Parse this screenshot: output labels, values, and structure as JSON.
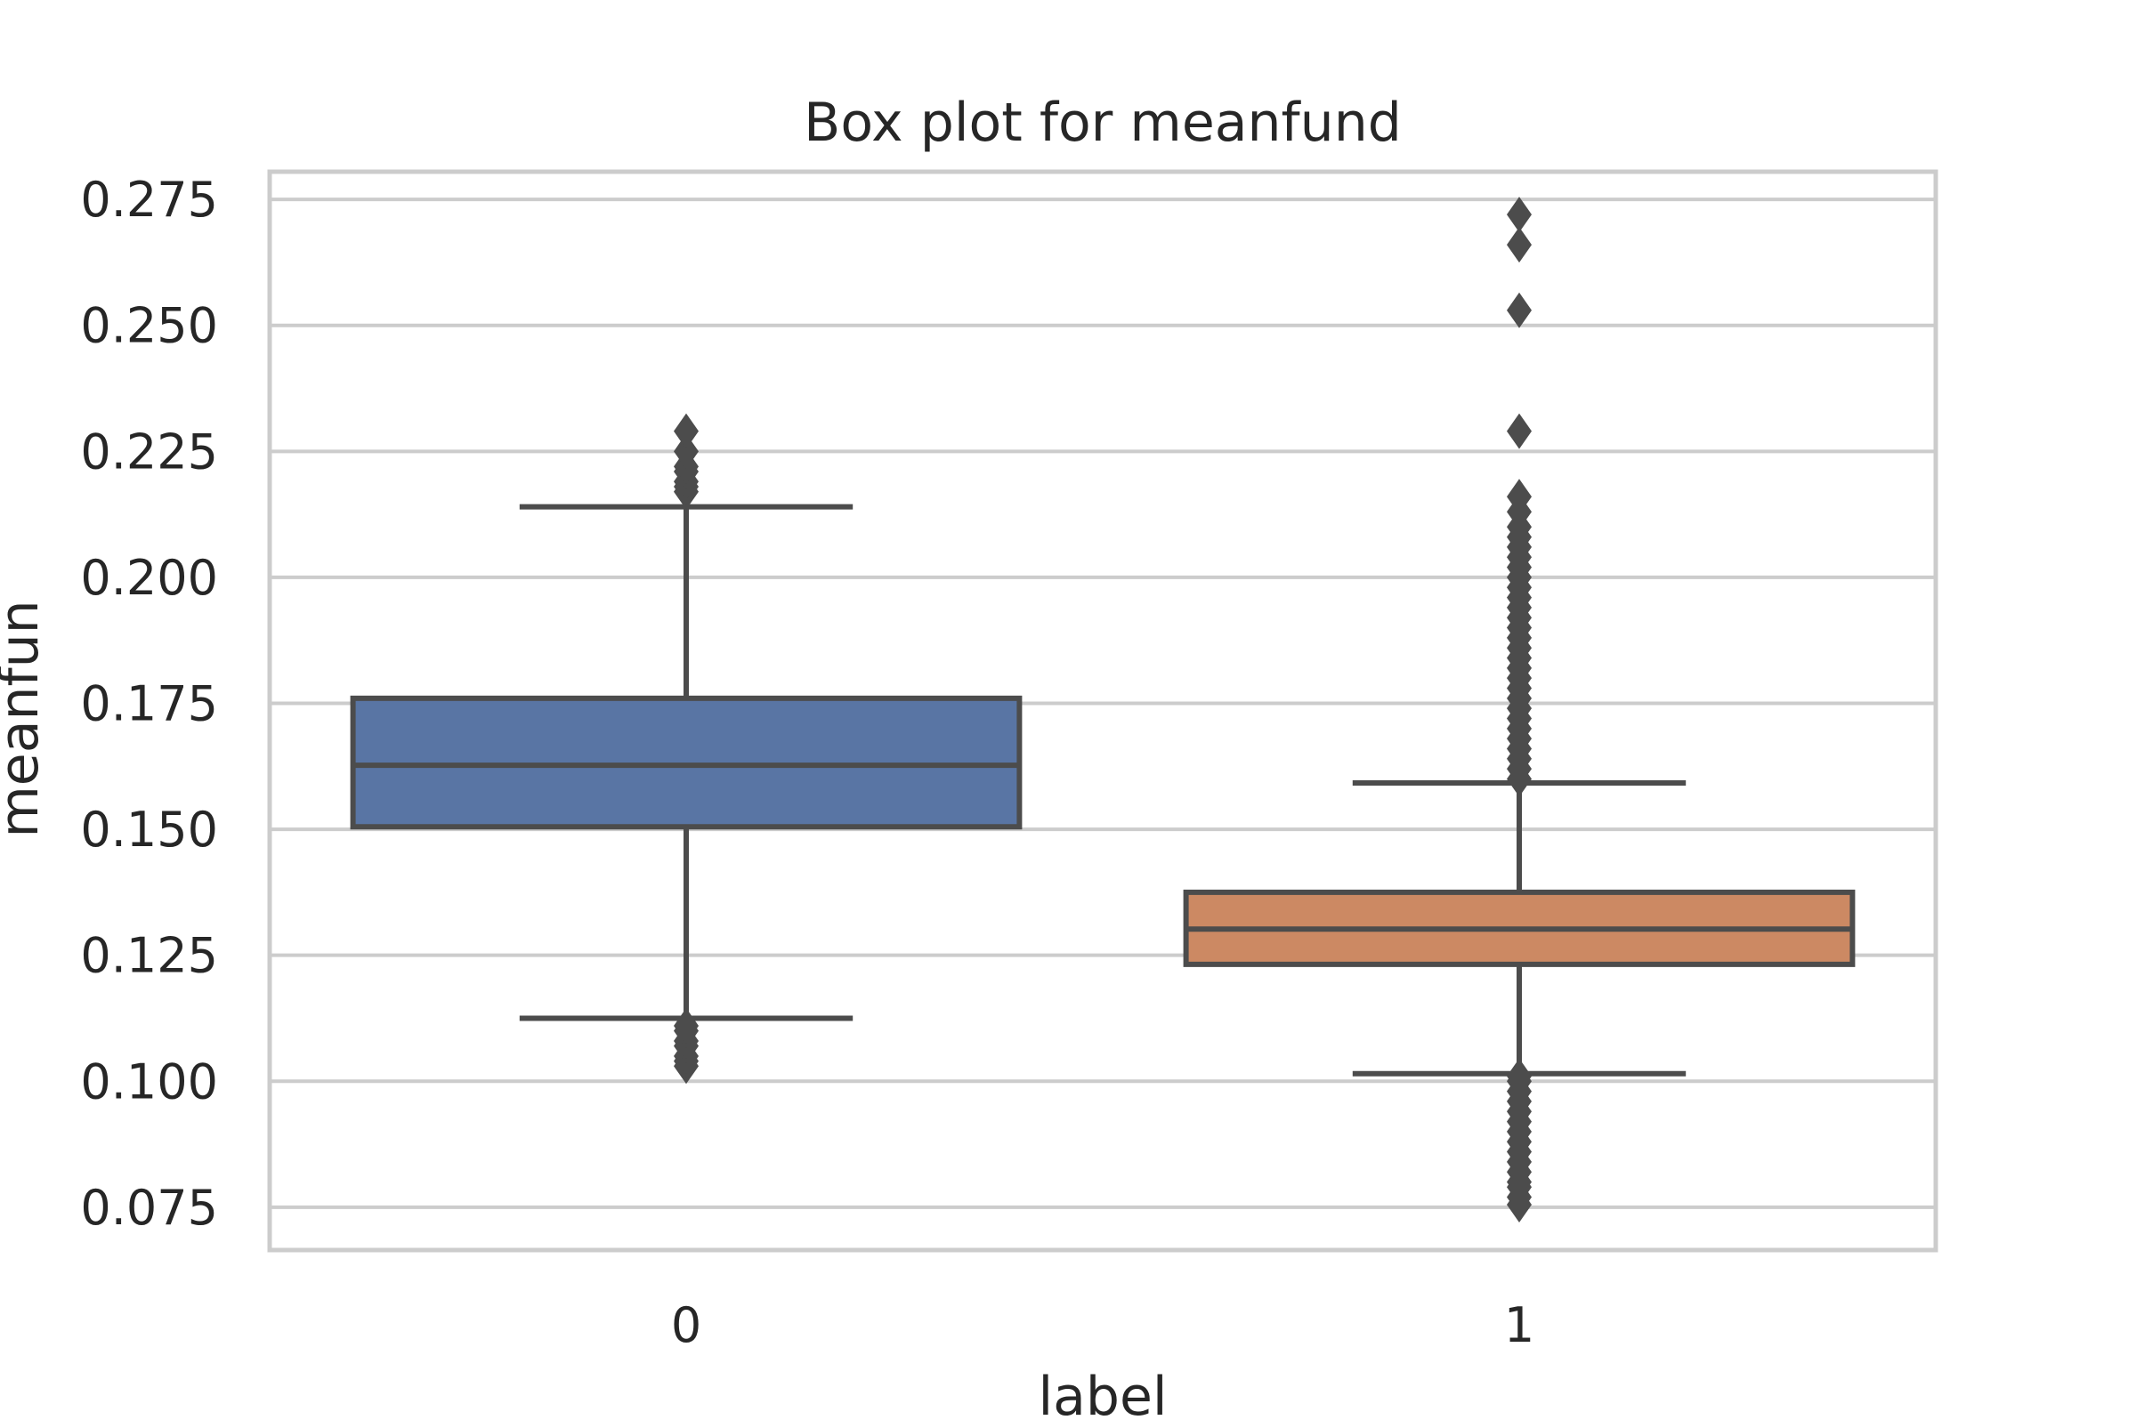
{
  "chart_data": {
    "type": "box",
    "title": "Box plot for meanfund",
    "xlabel": "label",
    "ylabel": "meanfun",
    "categories": [
      "0",
      "1"
    ],
    "ylim": [
      0.0665,
      0.2805
    ],
    "yticks": [
      0.075,
      0.1,
      0.125,
      0.15,
      0.175,
      0.2,
      0.225,
      0.25,
      0.275
    ],
    "ytick_labels": [
      "0.075",
      "0.100",
      "0.125",
      "0.150",
      "0.175",
      "0.200",
      "0.225",
      "0.250",
      "0.275"
    ],
    "grid": true,
    "boxes": [
      {
        "category": "0",
        "color": "#5975a4",
        "whisker_low": 0.1125,
        "q1": 0.1505,
        "median": 0.1627,
        "q3": 0.176,
        "whisker_high": 0.214,
        "outliers": [
          0.103,
          0.104,
          0.105,
          0.107,
          0.108,
          0.11,
          0.111,
          0.217,
          0.218,
          0.219,
          0.221,
          0.222,
          0.225,
          0.229
        ]
      },
      {
        "category": "1",
        "color": "#cc8963",
        "whisker_low": 0.1015,
        "q1": 0.1232,
        "median": 0.1302,
        "q3": 0.1375,
        "whisker_high": 0.1592,
        "outliers": [
          0.0755,
          0.077,
          0.079,
          0.08,
          0.082,
          0.084,
          0.086,
          0.088,
          0.09,
          0.092,
          0.094,
          0.096,
          0.098,
          0.1,
          0.101,
          0.16,
          0.162,
          0.164,
          0.166,
          0.168,
          0.17,
          0.172,
          0.174,
          0.176,
          0.178,
          0.18,
          0.182,
          0.184,
          0.186,
          0.188,
          0.19,
          0.192,
          0.194,
          0.196,
          0.198,
          0.2,
          0.202,
          0.204,
          0.206,
          0.208,
          0.21,
          0.213,
          0.216,
          0.229,
          0.253,
          0.266,
          0.272
        ]
      }
    ]
  }
}
